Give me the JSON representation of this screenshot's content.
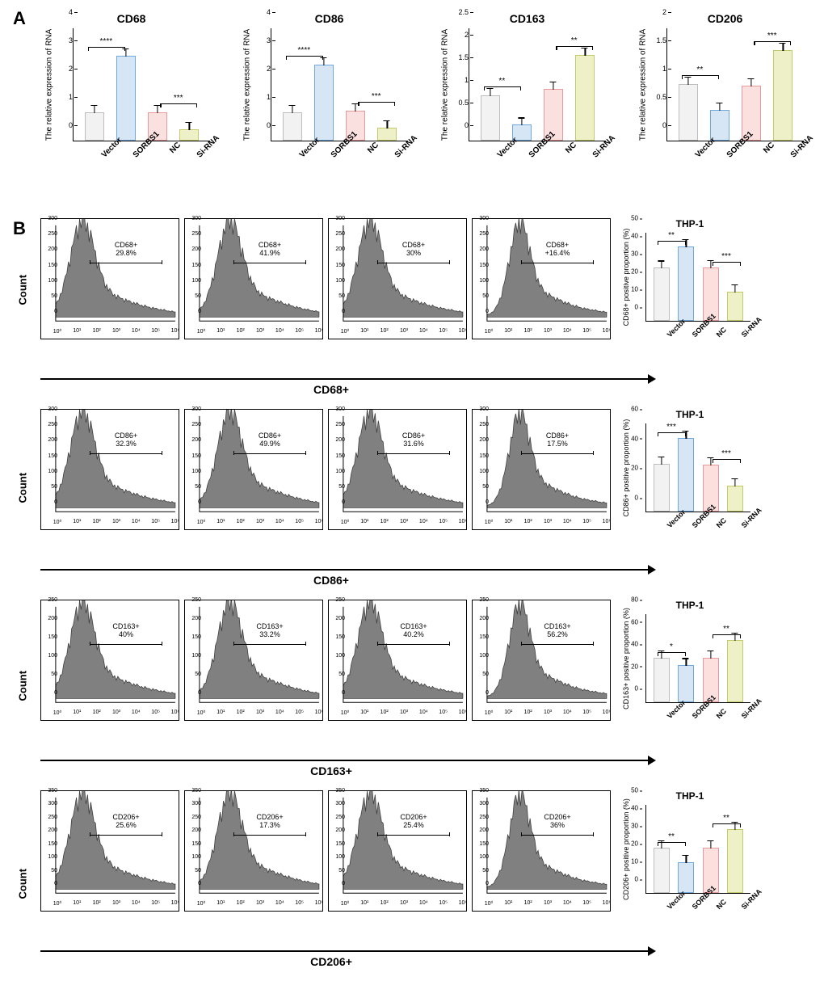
{
  "colors": {
    "vector_fill": "#f2f2f2",
    "vector_stroke": "#bdbdbd",
    "sorbs1_fill": "#d6e6f5",
    "sorbs1_stroke": "#6fa8dc",
    "nc_fill": "#fbe0e0",
    "nc_stroke": "#e89a9a",
    "sirna_fill": "#eef0c8",
    "sirna_stroke": "#c4c96a",
    "histo_fill": "#808080",
    "histo_stroke": "#404040"
  },
  "categories": [
    "Vector",
    "SORBS1",
    "NC",
    "Si-RNA"
  ],
  "panelA": {
    "label": "A",
    "ylabel": "The relative expression of RNA",
    "charts": [
      {
        "title": "CD68",
        "ymax": 4,
        "ytick_step": 1,
        "values": [
          1.0,
          3.0,
          1.0,
          0.4
        ],
        "sig": [
          [
            "****",
            0,
            1
          ],
          [
            "***",
            2,
            3
          ]
        ]
      },
      {
        "title": "CD86",
        "ymax": 4,
        "ytick_step": 1,
        "values": [
          1.0,
          2.7,
          1.05,
          0.45
        ],
        "sig": [
          [
            "****",
            0,
            1
          ],
          [
            "***",
            2,
            3
          ]
        ]
      },
      {
        "title": "CD163",
        "ymax": 2.5,
        "ytick_step": 0.5,
        "values": [
          1.0,
          0.35,
          1.15,
          1.9
        ],
        "sig": [
          [
            "**",
            0,
            1
          ],
          [
            "**",
            2,
            3
          ]
        ]
      },
      {
        "title": "CD206",
        "ymax": 2.0,
        "ytick_step": 0.5,
        "values": [
          1.0,
          0.55,
          0.97,
          1.6
        ],
        "sig": [
          [
            "**",
            0,
            1
          ],
          [
            "***",
            2,
            3
          ]
        ]
      }
    ]
  },
  "panelB": {
    "label": "B",
    "count_label": "Count",
    "rows": [
      {
        "marker": "CD68+",
        "ymax": 300,
        "ytick_step": 50,
        "gates": [
          {
            "label": "CD68+",
            "pct": "29.8%"
          },
          {
            "label": "CD68+",
            "pct": "41.9%"
          },
          {
            "label": "CD68+",
            "pct": "30%"
          },
          {
            "label": "CD68+",
            "pct": "+16.4%"
          }
        ],
        "summary": {
          "title": "THP-1",
          "ylabel": "CD68+ positive proportion (%)",
          "ymax": 50,
          "ytick_step": 10,
          "values": [
            29.8,
            41.9,
            30,
            16.4
          ],
          "sig": [
            [
              "**",
              0,
              1
            ],
            [
              "***",
              2,
              3
            ]
          ]
        }
      },
      {
        "marker": "CD86+",
        "ymax": 300,
        "ytick_step": 50,
        "gates": [
          {
            "label": "CD86+",
            "pct": "32.3%"
          },
          {
            "label": "CD86+",
            "pct": "49.9%"
          },
          {
            "label": "CD86+",
            "pct": "31.6%"
          },
          {
            "label": "CD86+",
            "pct": "17.5%"
          }
        ],
        "summary": {
          "title": "THP-1",
          "ylabel": "CD86+ positive proportion (%)",
          "ymax": 60,
          "ytick_step": 20,
          "values": [
            32.3,
            49.9,
            31.6,
            17.5
          ],
          "sig": [
            [
              "***",
              0,
              1
            ],
            [
              "***",
              2,
              3
            ]
          ]
        }
      },
      {
        "marker": "CD163+",
        "ymax": 250,
        "ytick_step": 50,
        "gates": [
          {
            "label": "CD163+",
            "pct": "40%"
          },
          {
            "label": "CD163+",
            "pct": "33.2%"
          },
          {
            "label": "CD163+",
            "pct": "40.2%"
          },
          {
            "label": "CD163+",
            "pct": "56.2%"
          }
        ],
        "summary": {
          "title": "THP-1",
          "ylabel": "CD163+ positive proportion (%)",
          "ymax": 80,
          "ytick_step": 20,
          "values": [
            40,
            33.2,
            40.2,
            56.2
          ],
          "sig": [
            [
              "*",
              0,
              1
            ],
            [
              "**",
              2,
              3
            ]
          ]
        }
      },
      {
        "marker": "CD206+",
        "ymax": 350,
        "ytick_step": 50,
        "gates": [
          {
            "label": "CD206+",
            "pct": "25.6%"
          },
          {
            "label": "CD206+",
            "pct": "17.3%"
          },
          {
            "label": "CD206+",
            "pct": "25.4%"
          },
          {
            "label": "CD206+",
            "pct": "36%"
          }
        ],
        "summary": {
          "title": "THP-1",
          "ylabel": "CD206+ positive proportion (%)",
          "ymax": 50,
          "ytick_step": 10,
          "values": [
            25.6,
            17.3,
            25.4,
            36
          ],
          "sig": [
            [
              "**",
              0,
              1
            ],
            [
              "**",
              2,
              3
            ]
          ]
        }
      }
    ],
    "xlog_ticks": [
      "10⁰",
      "10¹",
      "10²",
      "10³",
      "10⁴",
      "10⁵",
      "10⁶"
    ]
  }
}
